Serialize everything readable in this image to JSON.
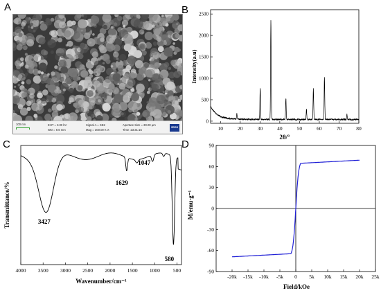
{
  "panels": {
    "a": "A",
    "b": "B",
    "c": "C",
    "d": "D"
  },
  "sem": {
    "scale": "100 nm",
    "eht": "EHT = 3.00 kV",
    "wd": "WD = 9.6 mm",
    "signal": "Signal A = SE2",
    "mag": "Mag = 300.00 K X",
    "aperture": "Aperture Size = 30.00 µm",
    "time": "Time :23:31:15",
    "logo": "ZEISS"
  },
  "chart_data": [
    {
      "id": "B",
      "type": "line",
      "xlabel": "2θ/°",
      "ylabel": "Intensity(a.u)",
      "xlim": [
        5,
        80
      ],
      "ylim": [
        -50,
        2600
      ],
      "xticks": [
        "10",
        "20",
        "30",
        "40",
        "50",
        "60",
        "70",
        "80"
      ],
      "yticks": [
        "0",
        "500",
        "1000",
        "1500",
        "2000",
        "2500"
      ],
      "peaks": [
        {
          "x": 18.3,
          "y": 190
        },
        {
          "x": 30.1,
          "y": 800
        },
        {
          "x": 35.5,
          "y": 2380
        },
        {
          "x": 43.1,
          "y": 560
        },
        {
          "x": 53.5,
          "y": 290
        },
        {
          "x": 57.0,
          "y": 770
        },
        {
          "x": 62.6,
          "y": 1060
        },
        {
          "x": 74.0,
          "y": 180
        }
      ]
    },
    {
      "id": "C",
      "type": "line",
      "xlabel": "Wavenumber/cm⁻¹",
      "ylabel": "Transmittance/%",
      "xlim": [
        4000,
        400
      ],
      "xticks": [
        "4000",
        "3500",
        "3000",
        "2500",
        "2000",
        "1500",
        "1000",
        "500"
      ],
      "annotations": [
        {
          "x": 3427,
          "label": "3427"
        },
        {
          "x": 1629,
          "label": "1629"
        },
        {
          "x": 1047,
          "label": "1047"
        },
        {
          "x": 580,
          "label": "580"
        }
      ]
    },
    {
      "id": "D",
      "type": "line",
      "xlabel": "Field/kOe",
      "ylabel": "M/emu·g⁻¹",
      "xlim": [
        -25,
        25
      ],
      "ylim": [
        -90,
        90
      ],
      "xticks": [
        "-20k",
        "-15k",
        "-10k",
        "-5k",
        "0",
        "5k",
        "10k",
        "15k",
        "20k",
        "25k"
      ],
      "yticks": [
        "90",
        "60",
        "30",
        "0",
        "-30",
        "-60",
        "-90"
      ],
      "series": [
        {
          "color": "#1f1fd6",
          "ms": 69,
          "hk": 0.9
        }
      ]
    }
  ]
}
